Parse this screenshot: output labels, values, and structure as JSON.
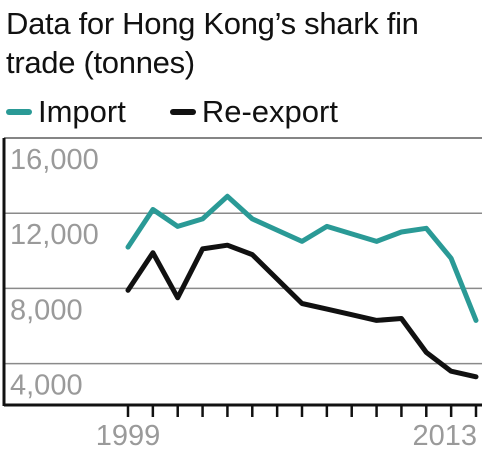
{
  "chart_data": {
    "type": "line",
    "title": "Data for Hong Kong’s shark fin trade (tonnes)",
    "x": [
      1999,
      2000,
      2001,
      2002,
      2003,
      2004,
      2005,
      2006,
      2007,
      2008,
      2009,
      2010,
      2011,
      2012,
      2013
    ],
    "x_tick_labels": [
      "1999",
      "2013"
    ],
    "y_tick_labels": [
      "16,000",
      "12,000",
      "8,000",
      "4,000"
    ],
    "y_ticks": [
      16000,
      12000,
      8000,
      4000
    ],
    "ylim": [
      1800,
      16000
    ],
    "grid": true,
    "legend_position": "top",
    "series": [
      {
        "name": "Import",
        "color": "#2a9a96",
        "values": [
          10200,
          12200,
          11300,
          11700,
          12900,
          11700,
          11100,
          10500,
          11300,
          10900,
          10500,
          11000,
          11200,
          9600,
          6300
        ]
      },
      {
        "name": "Re-export",
        "color": "#111111",
        "values": [
          7900,
          9900,
          7500,
          10100,
          10300,
          9800,
          8500,
          7200,
          6900,
          6600,
          6300,
          6400,
          4600,
          3600,
          3300
        ]
      }
    ]
  }
}
